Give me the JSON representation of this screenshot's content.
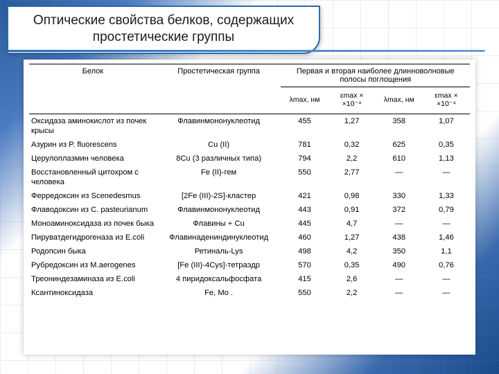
{
  "title": "Оптические свойства белков, содержащих простетические группы",
  "headers": {
    "protein": "Белок",
    "group": "Простетическая группа",
    "bands": "Первая и вторая наиболее длинноволновые полосы поглощения",
    "lambda1": "λmax, нм",
    "eps1": "εmax × ×10⁻⁴",
    "lambda2": "λmax, нм",
    "eps2": "εmax × ×10⁻⁴"
  },
  "rows": [
    {
      "p": "Оксидаза аминокислот из почек крысы",
      "g": "Флавинмононуклеотид",
      "l1": "455",
      "e1": "1,27",
      "l2": "358",
      "e2": "1,07"
    },
    {
      "p": "Азурин из P. fluorescens",
      "g": "Cu (II)",
      "l1": "781",
      "e1": "0,32",
      "l2": "625",
      "e2": "0,35"
    },
    {
      "p": "Церулоплазмин человека",
      "g": "8Cu (3 различных типа)",
      "l1": "794",
      "e1": "2,2",
      "l2": "610",
      "e2": "1,13"
    },
    {
      "p": "Восстановленный цитохром c человека",
      "g": "Fe (II)-гем",
      "l1": "550",
      "e1": "2,77",
      "l2": "—",
      "e2": "—"
    },
    {
      "p": "Ферредоксин из Scenedesmus",
      "g": "[2Fe (III)-2S]-кластер",
      "l1": "421",
      "e1": "0,98",
      "l2": "330",
      "e2": "1,33"
    },
    {
      "p": "Флаводоксин из C. pasteurianum",
      "g": "Флавинмононуклеотид",
      "l1": "443",
      "e1": "0,91",
      "l2": "372",
      "e2": "0,79"
    },
    {
      "p": "Моноаминоксидаза из почек быка",
      "g": "Флавины + Cu",
      "l1": "445",
      "e1": "4,7",
      "l2": "—",
      "e2": "—"
    },
    {
      "p": "Пируватдегидрогеназа из E.coli",
      "g": "Флавинадениндинуклеотид",
      "l1": "460",
      "e1": "1,27",
      "l2": "438",
      "e2": "1,46"
    },
    {
      "p": "Родопсин быка",
      "g": "Ретиналь-Lys",
      "l1": "498",
      "e1": "4,2",
      "l2": "350",
      "e2": "1,1"
    },
    {
      "p": "Рубредоксин из M.aerogenes",
      "g": "[Fe (III)-4Cys]-тетраэдр",
      "l1": "570",
      "e1": "0,35",
      "l2": "490",
      "e2": "0,76"
    },
    {
      "p": "Треониндезаминаза из E.coli",
      "g": "4 пиридоксальфосфата",
      "l1": "415",
      "e1": "2,6",
      "l2": "—",
      "e2": "—"
    },
    {
      "p": "Ксантиноксидаза",
      "g": "Fe, Mo .",
      "l1": "550",
      "e1": "2,2",
      "l2": "—",
      "e2": "—"
    }
  ]
}
